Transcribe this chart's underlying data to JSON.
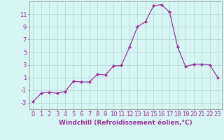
{
  "x": [
    0,
    1,
    2,
    3,
    4,
    5,
    6,
    7,
    8,
    9,
    10,
    11,
    12,
    13,
    14,
    15,
    16,
    17,
    18,
    19,
    20,
    21,
    22,
    23
  ],
  "y": [
    -2.8,
    -1.5,
    -1.3,
    -1.5,
    -1.2,
    0.4,
    0.3,
    0.3,
    1.5,
    1.4,
    2.8,
    2.9,
    5.8,
    9.0,
    9.8,
    12.3,
    12.5,
    11.3,
    5.8,
    2.7,
    3.1,
    3.1,
    3.0,
    1.0
  ],
  "line_color": "#993399",
  "marker": "D",
  "marker_size": 2.2,
  "bg_color": "#d8f5f5",
  "grid_color": "#b8d8d8",
  "ylabel_ticks": [
    -3,
    -1,
    1,
    3,
    5,
    7,
    9,
    11
  ],
  "ylim": [
    -4,
    13
  ],
  "xlim": [
    -0.5,
    23.5
  ],
  "xlabel": "Windchill (Refroidissement éolien,°C)",
  "tick_label_color": "#993399",
  "tick_fontsize": 6.0,
  "xlabel_fontsize": 6.5
}
